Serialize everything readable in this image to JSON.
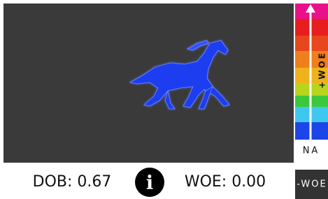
{
  "status": {
    "dob": "DOB: 0.67",
    "woe": "WOE: 0.00"
  },
  "legend": {
    "positive": "+WOE",
    "na": "NA",
    "negative": "-WOE"
  },
  "info_icon": "i"
}
